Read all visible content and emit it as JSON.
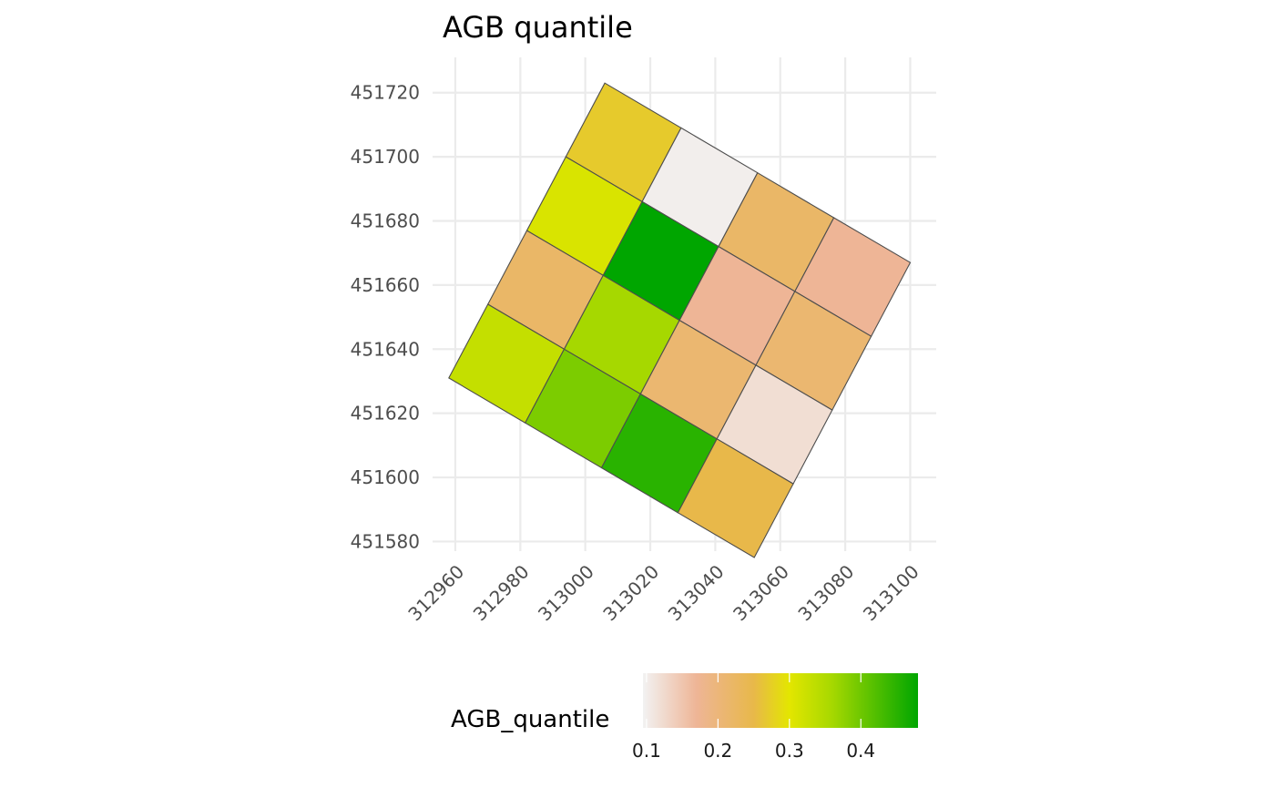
{
  "chart_data": {
    "type": "heatmap",
    "title": "AGB quantile",
    "xlabel": "",
    "ylabel": "",
    "x_ticks": [
      312960,
      312980,
      313000,
      313020,
      313040,
      313060,
      313080,
      313100
    ],
    "y_ticks": [
      451580,
      451600,
      451620,
      451640,
      451660,
      451680,
      451700,
      451720
    ],
    "xlim": [
      312953,
      313108
    ],
    "ylim": [
      451577,
      451731
    ],
    "grid": true,
    "grid_origin": [
      313006,
      451723
    ],
    "grid_col_vector": [
      23.5,
      -14.0
    ],
    "grid_row_vector": [
      -12.0,
      -23.0
    ],
    "grid_dims": {
      "rows": 4,
      "cols": 4
    },
    "cells": [
      {
        "row": 0,
        "col": 0,
        "value": 0.27
      },
      {
        "row": 0,
        "col": 1,
        "value": 0.1
      },
      {
        "row": 0,
        "col": 2,
        "value": 0.22
      },
      {
        "row": 0,
        "col": 3,
        "value": 0.17
      },
      {
        "row": 1,
        "col": 0,
        "value": 0.31
      },
      {
        "row": 1,
        "col": 1,
        "value": 0.48
      },
      {
        "row": 1,
        "col": 2,
        "value": 0.17
      },
      {
        "row": 1,
        "col": 3,
        "value": 0.21
      },
      {
        "row": 2,
        "col": 0,
        "value": 0.22
      },
      {
        "row": 2,
        "col": 1,
        "value": 0.36
      },
      {
        "row": 2,
        "col": 2,
        "value": 0.21
      },
      {
        "row": 2,
        "col": 3,
        "value": 0.12
      },
      {
        "row": 3,
        "col": 0,
        "value": 0.33
      },
      {
        "row": 3,
        "col": 1,
        "value": 0.39
      },
      {
        "row": 3,
        "col": 2,
        "value": 0.45
      },
      {
        "row": 3,
        "col": 3,
        "value": 0.25
      }
    ],
    "legend": {
      "title": "AGB_quantile",
      "position": "bottom",
      "ticks": [
        "0.1",
        "0.2",
        "0.3",
        "0.4"
      ],
      "tick_values": [
        0.1,
        0.2,
        0.3,
        0.4
      ],
      "range": [
        0.095,
        0.48
      ],
      "color_stops": [
        {
          "value": 0.095,
          "color": "#f2f2f2"
        },
        {
          "value": 0.17,
          "color": "#eeb596"
        },
        {
          "value": 0.25,
          "color": "#e8b84a"
        },
        {
          "value": 0.3,
          "color": "#e3e600"
        },
        {
          "value": 0.36,
          "color": "#a6d800"
        },
        {
          "value": 0.48,
          "color": "#00a600"
        }
      ]
    }
  }
}
